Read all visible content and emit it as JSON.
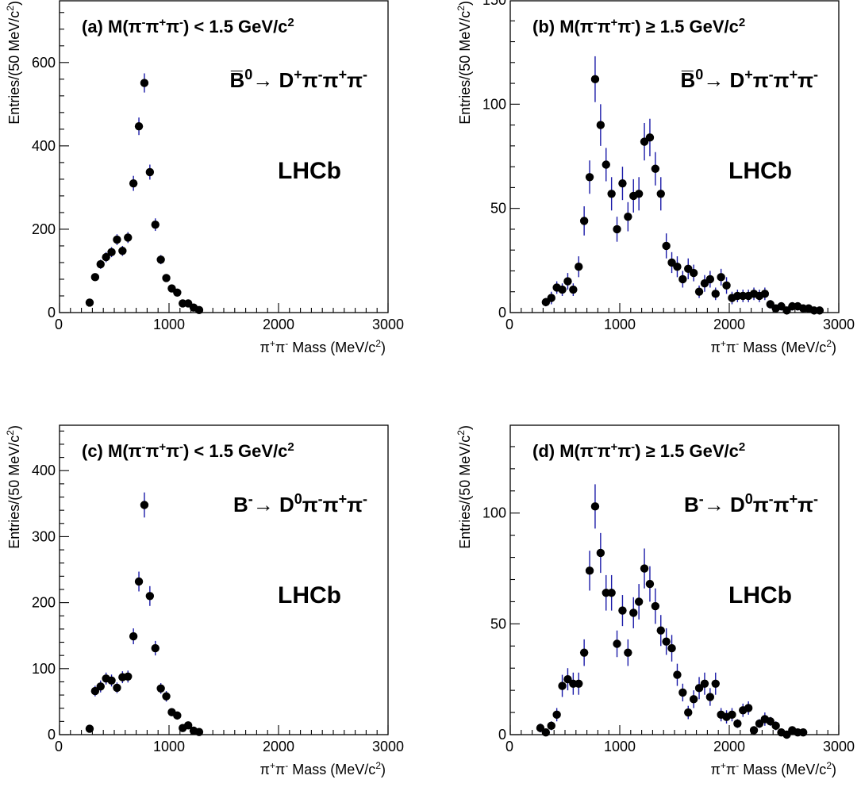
{
  "chart_data": [
    {
      "type": "scatter",
      "panel": "(a)",
      "cut_label": "(a) M(π⁻π⁺π⁻) < 1.5 GeV/c²",
      "decay_label": "B̅⁰→ D⁺π⁻π⁺π⁻",
      "experiment_label": "LHCb",
      "xlabel": "π⁺π⁻ Mass (MeV/c²)",
      "ylabel": "Entries/(50 MeV/c²)",
      "xlim": [
        0,
        3000
      ],
      "ylim": [
        0,
        750
      ],
      "xticks": [
        0,
        1000,
        2000,
        3000
      ],
      "yticks": [
        0,
        200,
        400,
        600
      ],
      "x": [
        275,
        325,
        375,
        425,
        475,
        525,
        575,
        625,
        675,
        725,
        775,
        825,
        875,
        925,
        975,
        1025,
        1075,
        1125,
        1175,
        1225,
        1275
      ],
      "y": [
        24,
        85,
        116,
        133,
        145,
        175,
        148,
        180,
        310,
        447,
        551,
        337,
        211,
        127,
        83,
        58,
        48,
        22,
        22,
        12,
        6
      ],
      "err": [
        5,
        9,
        11,
        12,
        12,
        13,
        12,
        13,
        18,
        21,
        23,
        18,
        15,
        11,
        9,
        8,
        7,
        5,
        5,
        4,
        3
      ]
    },
    {
      "type": "scatter",
      "panel": "(b)",
      "cut_label": "(b) M(π⁻π⁺π⁻) ≥ 1.5 GeV/c²",
      "decay_label": "B̅⁰→ D⁺π⁻π⁺π⁻",
      "experiment_label": "LHCb",
      "xlabel": "π⁺π⁻ Mass (MeV/c²)",
      "ylabel": "Entries/(50 MeV/c²)",
      "xlim": [
        0,
        3000
      ],
      "ylim": [
        0,
        150
      ],
      "xticks": [
        0,
        1000,
        2000,
        3000
      ],
      "yticks": [
        0,
        50,
        100,
        150
      ],
      "x": [
        325,
        375,
        425,
        475,
        525,
        575,
        625,
        675,
        725,
        775,
        825,
        875,
        925,
        975,
        1025,
        1075,
        1125,
        1175,
        1225,
        1275,
        1325,
        1375,
        1425,
        1475,
        1525,
        1575,
        1625,
        1675,
        1725,
        1775,
        1825,
        1875,
        1925,
        1975,
        2025,
        2075,
        2125,
        2175,
        2225,
        2275,
        2325,
        2375,
        2425,
        2475,
        2525,
        2575,
        2625,
        2675,
        2725,
        2775,
        2825
      ],
      "y": [
        5,
        7,
        12,
        11,
        15,
        11,
        22,
        44,
        65,
        112,
        90,
        71,
        57,
        40,
        62,
        46,
        56,
        57,
        82,
        84,
        69,
        57,
        32,
        24,
        22,
        16,
        21,
        19,
        10,
        14,
        16,
        9,
        17,
        13,
        7,
        8,
        8,
        8,
        9,
        8,
        9,
        4,
        2,
        3,
        1,
        3,
        3,
        2,
        2,
        1,
        1
      ],
      "err": [
        2,
        3,
        3,
        3,
        4,
        3,
        5,
        7,
        8,
        11,
        10,
        8,
        8,
        6,
        8,
        7,
        8,
        8,
        9,
        9,
        8,
        8,
        6,
        5,
        5,
        4,
        5,
        4,
        3,
        4,
        4,
        3,
        4,
        4,
        3,
        3,
        3,
        3,
        3,
        3,
        3,
        2,
        1,
        2,
        1,
        2,
        2,
        1,
        1,
        1,
        1
      ]
    },
    {
      "type": "scatter",
      "panel": "(c)",
      "cut_label": "(c) M(π⁻π⁺π⁻) < 1.5 GeV/c²",
      "decay_label": "B⁻→ D⁰π⁻π⁺π⁻",
      "experiment_label": "LHCb",
      "xlabel": "π⁺π⁻ Mass (MeV/c²)",
      "ylabel": "Entries/(50 MeV/c²)",
      "xlim": [
        0,
        3000
      ],
      "ylim": [
        0,
        470
      ],
      "xticks": [
        0,
        1000,
        2000,
        3000
      ],
      "yticks": [
        0,
        100,
        200,
        300,
        400
      ],
      "x": [
        275,
        325,
        375,
        425,
        475,
        525,
        575,
        625,
        675,
        725,
        775,
        825,
        875,
        925,
        975,
        1025,
        1075,
        1125,
        1175,
        1225,
        1275
      ],
      "y": [
        9,
        66,
        73,
        85,
        82,
        71,
        87,
        88,
        149,
        232,
        348,
        210,
        131,
        70,
        58,
        34,
        29,
        10,
        14,
        6,
        4
      ],
      "err": [
        3,
        8,
        9,
        9,
        9,
        8,
        9,
        9,
        12,
        15,
        19,
        15,
        11,
        8,
        8,
        6,
        5,
        3,
        4,
        2,
        2
      ]
    },
    {
      "type": "scatter",
      "panel": "(d)",
      "cut_label": "(d) M(π⁻π⁺π⁻) ≥ 1.5 GeV/c²",
      "decay_label": "B⁻→ D⁰π⁻π⁺π⁻",
      "experiment_label": "LHCb",
      "xlabel": "π⁺π⁻ Mass (MeV/c²)",
      "ylabel": "Entries/(50 MeV/c²)",
      "xlim": [
        0,
        3000
      ],
      "ylim": [
        0,
        140
      ],
      "xticks": [
        0,
        1000,
        2000,
        3000
      ],
      "yticks": [
        0,
        50,
        100
      ],
      "x": [
        275,
        325,
        375,
        425,
        475,
        525,
        575,
        625,
        675,
        725,
        775,
        825,
        875,
        925,
        975,
        1025,
        1075,
        1125,
        1175,
        1225,
        1275,
        1325,
        1375,
        1425,
        1475,
        1525,
        1575,
        1625,
        1675,
        1725,
        1775,
        1825,
        1875,
        1925,
        1975,
        2025,
        2075,
        2125,
        2175,
        2225,
        2275,
        2325,
        2375,
        2425,
        2475,
        2525,
        2575,
        2625,
        2675
      ],
      "y": [
        3,
        1,
        4,
        9,
        22,
        25,
        23,
        23,
        37,
        74,
        103,
        82,
        64,
        64,
        41,
        56,
        37,
        55,
        60,
        75,
        68,
        58,
        47,
        42,
        39,
        27,
        19,
        10,
        16,
        21,
        23,
        17,
        23,
        9,
        8,
        9,
        5,
        11,
        12,
        2,
        5,
        7,
        6,
        4,
        1,
        0,
        2,
        1,
        1
      ],
      "err": [
        2,
        1,
        2,
        3,
        5,
        5,
        5,
        5,
        6,
        9,
        10,
        9,
        8,
        8,
        6,
        7,
        6,
        7,
        8,
        9,
        8,
        8,
        7,
        6,
        6,
        5,
        4,
        3,
        4,
        5,
        5,
        4,
        5,
        3,
        3,
        3,
        2,
        3,
        3,
        1,
        2,
        3,
        2,
        2,
        1,
        1,
        1,
        1,
        1
      ]
    }
  ]
}
